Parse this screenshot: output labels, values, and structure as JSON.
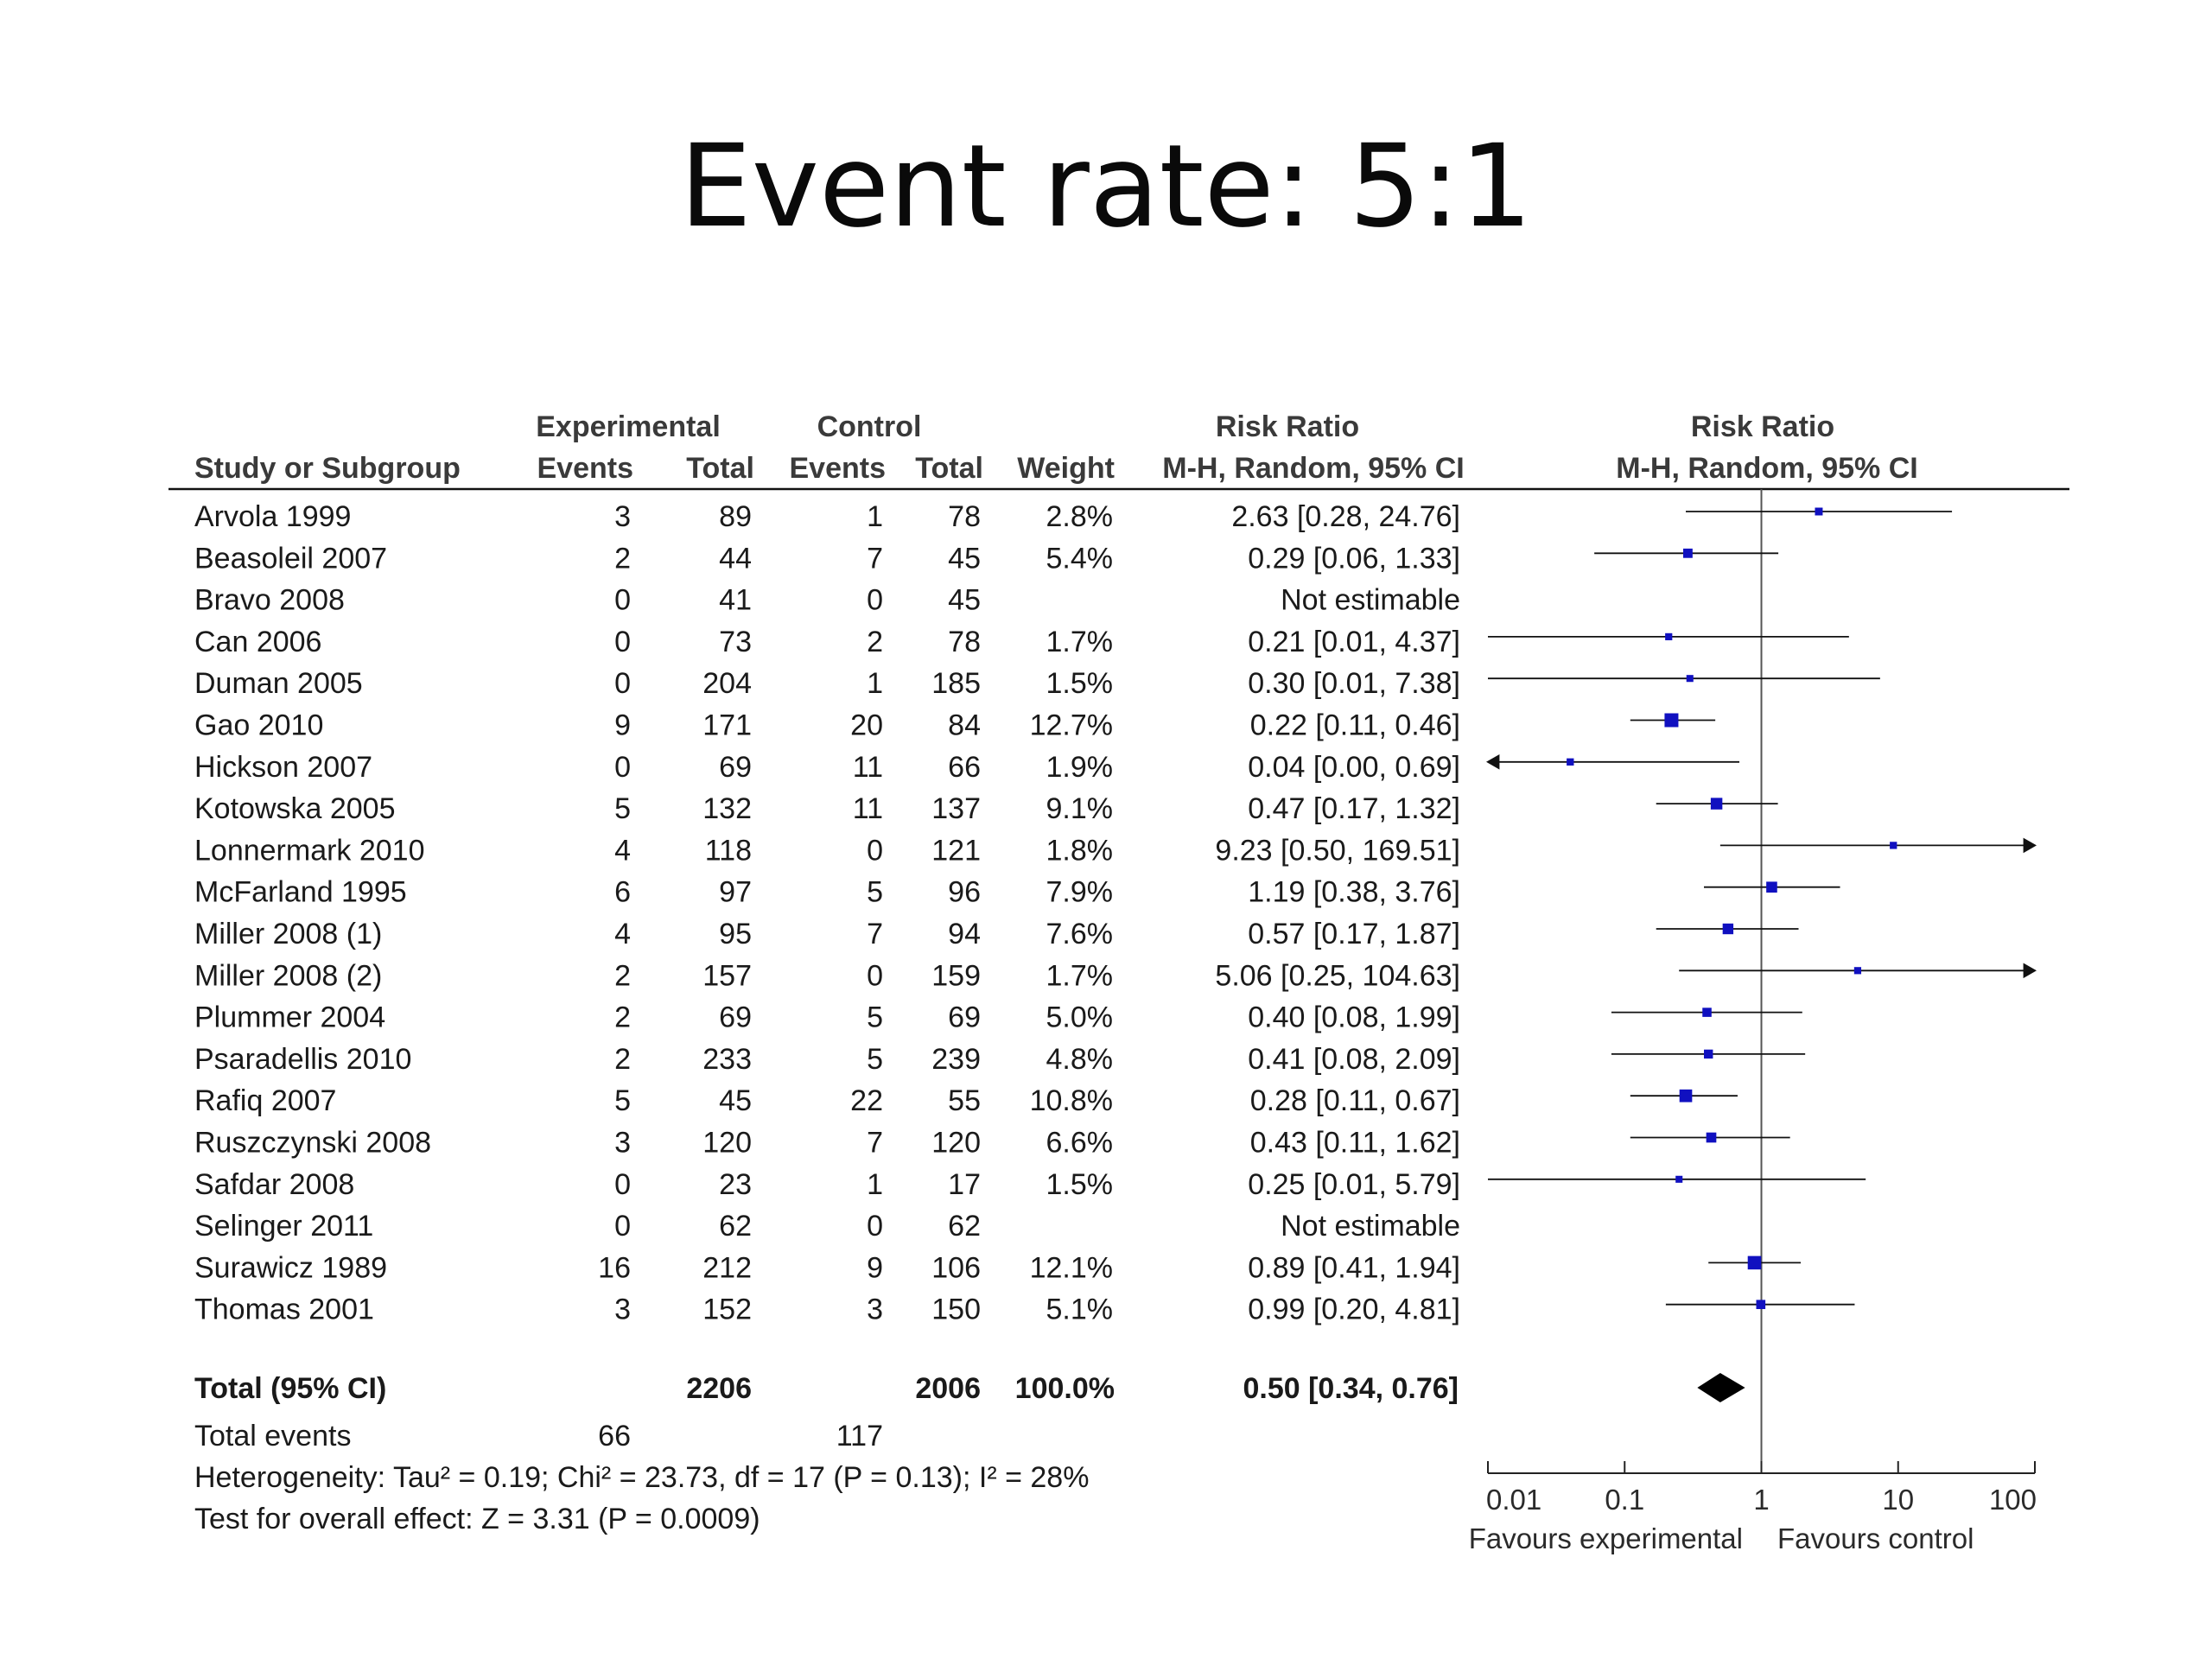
{
  "title": "Event rate: 5:1",
  "chart_data": {
    "type": "forest",
    "columns": {
      "group_experimental": "Experimental",
      "group_control": "Control",
      "study": "Study or Subgroup",
      "events": "Events",
      "total": "Total",
      "weight": "Weight",
      "rr_title": "Risk Ratio",
      "rr_method": "M-H, Random, 95% CI"
    },
    "studies": [
      {
        "name": "Arvola 1999",
        "exp_events": "3",
        "exp_total": "89",
        "ctl_events": "1",
        "ctl_total": "78",
        "weight": "2.8%",
        "ci_text": "2.63 [0.28, 24.76]",
        "rr": 2.63,
        "lo": 0.28,
        "hi": 24.76
      },
      {
        "name": "Beasoleil 2007",
        "exp_events": "2",
        "exp_total": "44",
        "ctl_events": "7",
        "ctl_total": "45",
        "weight": "5.4%",
        "ci_text": "0.29 [0.06, 1.33]",
        "rr": 0.29,
        "lo": 0.06,
        "hi": 1.33
      },
      {
        "name": "Bravo 2008",
        "exp_events": "0",
        "exp_total": "41",
        "ctl_events": "0",
        "ctl_total": "45",
        "weight": "",
        "ci_text": "Not estimable",
        "rr": null,
        "lo": null,
        "hi": null
      },
      {
        "name": "Can 2006",
        "exp_events": "0",
        "exp_total": "73",
        "ctl_events": "2",
        "ctl_total": "78",
        "weight": "1.7%",
        "ci_text": "0.21 [0.01, 4.37]",
        "rr": 0.21,
        "lo": 0.01,
        "hi": 4.37
      },
      {
        "name": "Duman 2005",
        "exp_events": "0",
        "exp_total": "204",
        "ctl_events": "1",
        "ctl_total": "185",
        "weight": "1.5%",
        "ci_text": "0.30 [0.01, 7.38]",
        "rr": 0.3,
        "lo": 0.01,
        "hi": 7.38
      },
      {
        "name": "Gao 2010",
        "exp_events": "9",
        "exp_total": "171",
        "ctl_events": "20",
        "ctl_total": "84",
        "weight": "12.7%",
        "ci_text": "0.22 [0.11, 0.46]",
        "rr": 0.22,
        "lo": 0.11,
        "hi": 0.46
      },
      {
        "name": "Hickson 2007",
        "exp_events": "0",
        "exp_total": "69",
        "ctl_events": "11",
        "ctl_total": "66",
        "weight": "1.9%",
        "ci_text": "0.04 [0.00, 0.69]",
        "rr": 0.04,
        "lo": 0.0,
        "hi": 0.69
      },
      {
        "name": "Kotowska 2005",
        "exp_events": "5",
        "exp_total": "132",
        "ctl_events": "11",
        "ctl_total": "137",
        "weight": "9.1%",
        "ci_text": "0.47 [0.17, 1.32]",
        "rr": 0.47,
        "lo": 0.17,
        "hi": 1.32
      },
      {
        "name": "Lonnermark 2010",
        "exp_events": "4",
        "exp_total": "118",
        "ctl_events": "0",
        "ctl_total": "121",
        "weight": "1.8%",
        "ci_text": "9.23 [0.50, 169.51]",
        "rr": 9.23,
        "lo": 0.5,
        "hi": 169.51
      },
      {
        "name": "McFarland 1995",
        "exp_events": "6",
        "exp_total": "97",
        "ctl_events": "5",
        "ctl_total": "96",
        "weight": "7.9%",
        "ci_text": "1.19 [0.38, 3.76]",
        "rr": 1.19,
        "lo": 0.38,
        "hi": 3.76
      },
      {
        "name": "Miller 2008 (1)",
        "exp_events": "4",
        "exp_total": "95",
        "ctl_events": "7",
        "ctl_total": "94",
        "weight": "7.6%",
        "ci_text": "0.57 [0.17, 1.87]",
        "rr": 0.57,
        "lo": 0.17,
        "hi": 1.87
      },
      {
        "name": "Miller 2008 (2)",
        "exp_events": "2",
        "exp_total": "157",
        "ctl_events": "0",
        "ctl_total": "159",
        "weight": "1.7%",
        "ci_text": "5.06 [0.25, 104.63]",
        "rr": 5.06,
        "lo": 0.25,
        "hi": 104.63
      },
      {
        "name": "Plummer 2004",
        "exp_events": "2",
        "exp_total": "69",
        "ctl_events": "5",
        "ctl_total": "69",
        "weight": "5.0%",
        "ci_text": "0.40 [0.08, 1.99]",
        "rr": 0.4,
        "lo": 0.08,
        "hi": 1.99
      },
      {
        "name": "Psaradellis 2010",
        "exp_events": "2",
        "exp_total": "233",
        "ctl_events": "5",
        "ctl_total": "239",
        "weight": "4.8%",
        "ci_text": "0.41 [0.08, 2.09]",
        "rr": 0.41,
        "lo": 0.08,
        "hi": 2.09
      },
      {
        "name": "Rafiq 2007",
        "exp_events": "5",
        "exp_total": "45",
        "ctl_events": "22",
        "ctl_total": "55",
        "weight": "10.8%",
        "ci_text": "0.28 [0.11, 0.67]",
        "rr": 0.28,
        "lo": 0.11,
        "hi": 0.67
      },
      {
        "name": "Ruszczynski 2008",
        "exp_events": "3",
        "exp_total": "120",
        "ctl_events": "7",
        "ctl_total": "120",
        "weight": "6.6%",
        "ci_text": "0.43 [0.11, 1.62]",
        "rr": 0.43,
        "lo": 0.11,
        "hi": 1.62
      },
      {
        "name": "Safdar 2008",
        "exp_events": "0",
        "exp_total": "23",
        "ctl_events": "1",
        "ctl_total": "17",
        "weight": "1.5%",
        "ci_text": "0.25 [0.01, 5.79]",
        "rr": 0.25,
        "lo": 0.01,
        "hi": 5.79
      },
      {
        "name": "Selinger 2011",
        "exp_events": "0",
        "exp_total": "62",
        "ctl_events": "0",
        "ctl_total": "62",
        "weight": "",
        "ci_text": "Not estimable",
        "rr": null,
        "lo": null,
        "hi": null
      },
      {
        "name": "Surawicz 1989",
        "exp_events": "16",
        "exp_total": "212",
        "ctl_events": "9",
        "ctl_total": "106",
        "weight": "12.1%",
        "ci_text": "0.89 [0.41, 1.94]",
        "rr": 0.89,
        "lo": 0.41,
        "hi": 1.94
      },
      {
        "name": "Thomas 2001",
        "exp_events": "3",
        "exp_total": "152",
        "ctl_events": "3",
        "ctl_total": "150",
        "weight": "5.1%",
        "ci_text": "0.99 [0.20, 4.81]",
        "rr": 0.99,
        "lo": 0.2,
        "hi": 4.81
      }
    ],
    "total": {
      "label": "Total (95% CI)",
      "exp_total": "2206",
      "ctl_total": "2006",
      "weight": "100.0%",
      "ci_text": "0.50 [0.34, 0.76]",
      "rr": 0.5,
      "lo": 0.34,
      "hi": 0.76
    },
    "total_events": {
      "label": "Total events",
      "exp": "66",
      "ctl": "117"
    },
    "heterogeneity": "Heterogeneity: Tau² = 0.19; Chi² = 23.73, df = 17 (P = 0.13); I² = 28%",
    "overall_effect": "Test for overall effect: Z = 3.31 (P = 0.0009)",
    "x_scale": "log",
    "x_ticks": [
      0.01,
      0.1,
      1,
      10,
      100
    ],
    "x_tick_labels": [
      "0.01",
      "0.1",
      "1",
      "10",
      "100"
    ],
    "xlim": [
      0.01,
      100
    ],
    "favours_left": "Favours experimental",
    "favours_right": "Favours control",
    "colors": {
      "marker": "#1010c0",
      "line": "#111111",
      "diamond": "#000000"
    }
  }
}
